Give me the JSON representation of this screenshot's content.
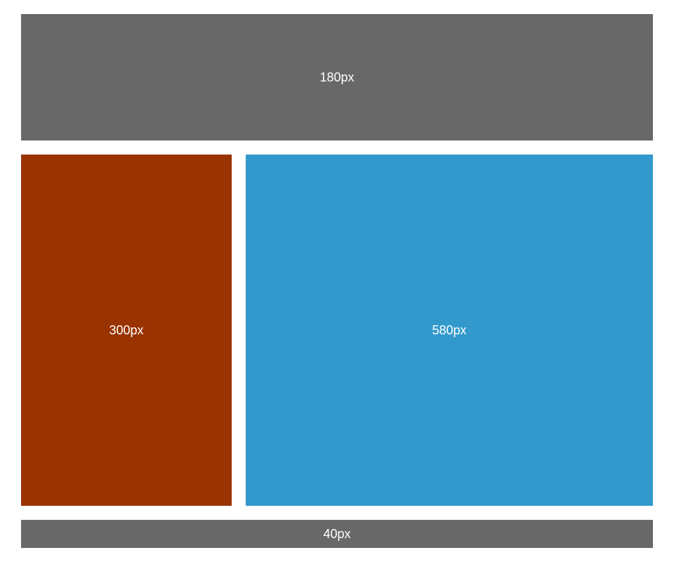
{
  "panels": {
    "header": {
      "label": "180px",
      "color": "#686868"
    },
    "left": {
      "label": "300px",
      "color": "#993300"
    },
    "right": {
      "label": "580px",
      "color": "#3399cc"
    },
    "footer": {
      "label": "40px",
      "color": "#686868"
    }
  }
}
